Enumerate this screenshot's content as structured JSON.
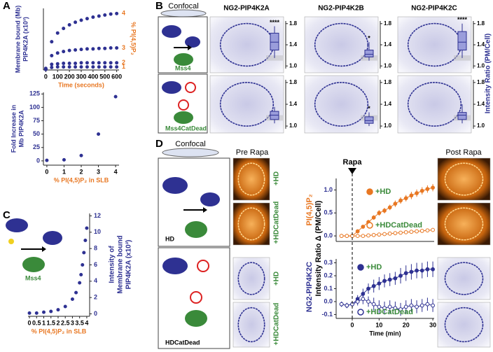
{
  "figure": {
    "panel_labels": [
      "A",
      "B",
      "C",
      "D"
    ],
    "B": {
      "header": "Confocal",
      "cartoon_labels": [
        "Mss4",
        "Mss4CatDead"
      ]
    },
    "C": {
      "cartoon_label": "Mss4"
    },
    "D": {
      "header": "Confocal",
      "pre": "Pre Rapa",
      "post": "Post Rapa",
      "cartoon_labels": [
        "HD",
        "HDCatDead"
      ],
      "image_labels": [
        "+HD",
        "+HDCatDead",
        "+HD",
        "+HDCatDead"
      ],
      "shared_ylabel": "Intensity Ratio Δ (PM/Cell)"
    }
  },
  "chart_data": [
    {
      "type": "scatter",
      "xlabel": "Time (seconds)",
      "ylabel": [
        "Membrane bound (Mb)",
        "PIP4K2A (x10³)"
      ],
      "y2label": "% PI(4,5)P₂",
      "color": "#2e3192",
      "label_color": "#e87722",
      "x": [
        0,
        50,
        100,
        150,
        200,
        250,
        300,
        350,
        400,
        450,
        500,
        550,
        600
      ],
      "series": [
        {
          "name": "4",
          "values": [
            0.3,
            5.5,
            7.2,
            8.1,
            8.8,
            9.3,
            9.7,
            10,
            10.3,
            10.5,
            10.7,
            10.9,
            11
          ]
        },
        {
          "name": "3",
          "values": [
            0.2,
            2.8,
            3.3,
            3.6,
            3.8,
            3.9,
            4,
            4.1,
            4.1,
            4.2,
            4.2,
            4.3,
            4.3
          ]
        },
        {
          "name": "2",
          "values": [
            0.1,
            1.1,
            1.2,
            1.3,
            1.3,
            1.3,
            1.4,
            1.4,
            1.4,
            1.4,
            1.4,
            1.4,
            1.4
          ]
        },
        {
          "name": "1",
          "values": [
            0.1,
            0.5,
            0.6,
            0.6,
            0.6,
            0.6,
            0.6,
            0.6,
            0.6,
            0.6,
            0.6,
            0.6,
            0.6
          ]
        }
      ],
      "xlim": [
        -20,
        620
      ],
      "ylim": [
        0,
        12
      ],
      "xticks": [
        0,
        100,
        200,
        300,
        400,
        500,
        600
      ]
    },
    {
      "type": "scatter",
      "xlabel": "% PI(4,5)P₂ in SLB",
      "ylabel": [
        "Fold Increase in",
        "Mb PIP4K2A"
      ],
      "color": "#2e3192",
      "label_color": "#e87722",
      "x": [
        0,
        1,
        2,
        3,
        4
      ],
      "values": [
        1,
        2,
        10,
        50,
        120
      ],
      "xlim": [
        -0.2,
        4.2
      ],
      "ylim": [
        -8,
        128
      ],
      "xticks": [
        0,
        1,
        2,
        3,
        4
      ],
      "yticks": [
        0,
        25,
        50,
        75,
        100,
        125
      ]
    },
    {
      "type": "scatter",
      "xlabel": "% PI(4,5)P₂ in SLB",
      "ylabel": [
        "Intensity of",
        "Membrane bound",
        "PIP4K2A (x10³)"
      ],
      "color": "#2e3192",
      "label_color": "#e87722",
      "y_axis_side": "right",
      "x": [
        0,
        0.5,
        1,
        1.5,
        2,
        2.5,
        3,
        3.25,
        3.5,
        3.6,
        3.7,
        3.8,
        3.9,
        4
      ],
      "values": [
        0.1,
        0.1,
        0.2,
        0.3,
        0.5,
        0.9,
        1.8,
        2.6,
        3.8,
        4.8,
        6,
        7.5,
        9,
        10.5
      ],
      "xlim": [
        -0.1,
        4.2
      ],
      "ylim": [
        -0.3,
        12.3
      ],
      "xticks": [
        0,
        0.5,
        1,
        1.5,
        2,
        2.5,
        3,
        3.5,
        4
      ],
      "yticks": [
        0,
        2,
        4,
        6,
        8,
        10,
        12
      ]
    },
    {
      "type": "box",
      "ylabel": "Intensity Ratio (PM/Cell)",
      "color": "#2e3192",
      "fill": "#9a9ddb",
      "categories": [
        "NG2-PIP4K2A",
        "NG2-PIP4K2B",
        "NG2-PIP4K2C"
      ],
      "series": [
        {
          "q1": [
            1.3,
            1.17,
            1.3
          ],
          "median": [
            1.45,
            1.22,
            1.45
          ],
          "q3": [
            1.62,
            1.3,
            1.65
          ],
          "low": [
            1.15,
            1.1,
            1.15
          ],
          "high": [
            1.75,
            1.45,
            1.8
          ],
          "annotations": [
            "****",
            "*",
            "****"
          ]
        },
        {
          "q1": [
            1.12,
            1.05,
            1.12
          ],
          "median": [
            1.2,
            1.1,
            1.2
          ],
          "q3": [
            1.27,
            1.17,
            1.25
          ],
          "low": [
            1.05,
            1,
            1.05
          ],
          "high": [
            1.35,
            1.25,
            1.4
          ],
          "annotations": [
            null,
            "*",
            null
          ]
        }
      ],
      "ylim": [
        0.95,
        1.85
      ],
      "yticks": [
        {
          "value": 1,
          "label": "1.0"
        },
        1.4,
        1.8
      ]
    },
    {
      "type": "line",
      "ylabel": "PI(4,5)P₂",
      "color": "#e87722",
      "x": [
        -4,
        -2,
        0,
        2,
        4,
        6,
        8,
        10,
        12,
        14,
        16,
        18,
        20,
        22,
        24,
        26,
        28,
        30
      ],
      "series": [
        {
          "name": "+HD",
          "marker": "filled",
          "values": [
            0,
            0,
            0,
            0.1,
            0.2,
            0.3,
            0.4,
            0.5,
            0.55,
            0.62,
            0.7,
            0.77,
            0.82,
            0.88,
            0.93,
            0.98,
            1.02,
            1.05
          ],
          "errors": [
            0.02,
            0.02,
            0.02,
            0.03,
            0.04,
            0.05,
            0.05,
            0.06,
            0.06,
            0.06,
            0.07,
            0.07,
            0.07,
            0.08,
            0.08,
            0.08,
            0.08,
            0.08
          ]
        },
        {
          "name": "+HDCatDead",
          "marker": "open",
          "values": [
            0,
            0,
            0,
            0,
            0,
            0.01,
            0.02,
            0.03,
            0.04,
            0.05,
            0.06,
            0.07,
            0.08,
            0.09,
            0.1,
            0.11,
            0.12,
            0.13
          ],
          "errors": [
            0.02,
            0.02,
            0.02,
            0.02,
            0.02,
            0.02,
            0.02,
            0.02,
            0.02,
            0.02,
            0.02,
            0.02,
            0.02,
            0.02,
            0.02,
            0.02,
            0.02,
            0.02
          ]
        }
      ],
      "xlim": [
        -6,
        30.5
      ],
      "ylim": [
        -0.12,
        1.25
      ],
      "yticks": [
        {
          "value": 0,
          "label": "0.0"
        },
        0.5,
        {
          "value": 1,
          "label": "1.0"
        }
      ]
    },
    {
      "type": "line",
      "ylabel": "NG2-PIP4K2C",
      "xlabel": "Time (min)",
      "color": "#2e3192",
      "event": {
        "x": 0,
        "label": "Rapa"
      },
      "x": [
        -4,
        -2,
        0,
        2,
        4,
        6,
        8,
        10,
        12,
        14,
        16,
        18,
        20,
        22,
        24,
        26,
        28,
        30
      ],
      "series": [
        {
          "name": "+HD",
          "marker": "filled",
          "values": [
            -0.02,
            -0.03,
            -0.02,
            0.02,
            0.06,
            0.1,
            0.12,
            0.14,
            0.16,
            0.17,
            0.18,
            0.2,
            0.22,
            0.23,
            0.24,
            0.24,
            0.25,
            0.25
          ],
          "errors": [
            0.02,
            0.02,
            0.02,
            0.03,
            0.04,
            0.04,
            0.05,
            0.05,
            0.05,
            0.05,
            0.05,
            0.06,
            0.06,
            0.06,
            0.06,
            0.06,
            0.06,
            0.06
          ]
        },
        {
          "name": "+HDCatDead",
          "marker": "open",
          "values": [
            -0.02,
            -0.03,
            -0.02,
            0,
            0.02,
            0,
            -0.02,
            -0.04,
            -0.05,
            -0.04,
            -0.05,
            -0.06,
            -0.04,
            -0.03,
            -0.04,
            -0.03,
            -0.02,
            -0.03
          ],
          "errors": [
            0.02,
            0.02,
            0.02,
            0.03,
            0.04,
            0.04,
            0.05,
            0.05,
            0.05,
            0.05,
            0.05,
            0.05,
            0.05,
            0.05,
            0.05,
            0.05,
            0.05,
            0.05
          ]
        }
      ],
      "xlim": [
        -6,
        30.5
      ],
      "ylim": [
        -0.13,
        0.33
      ],
      "xticks": [
        0,
        10,
        20,
        30
      ],
      "yticks": [
        -0.1,
        {
          "value": 0,
          "label": "0.0"
        },
        0.1,
        0.2,
        0.3
      ]
    }
  ]
}
